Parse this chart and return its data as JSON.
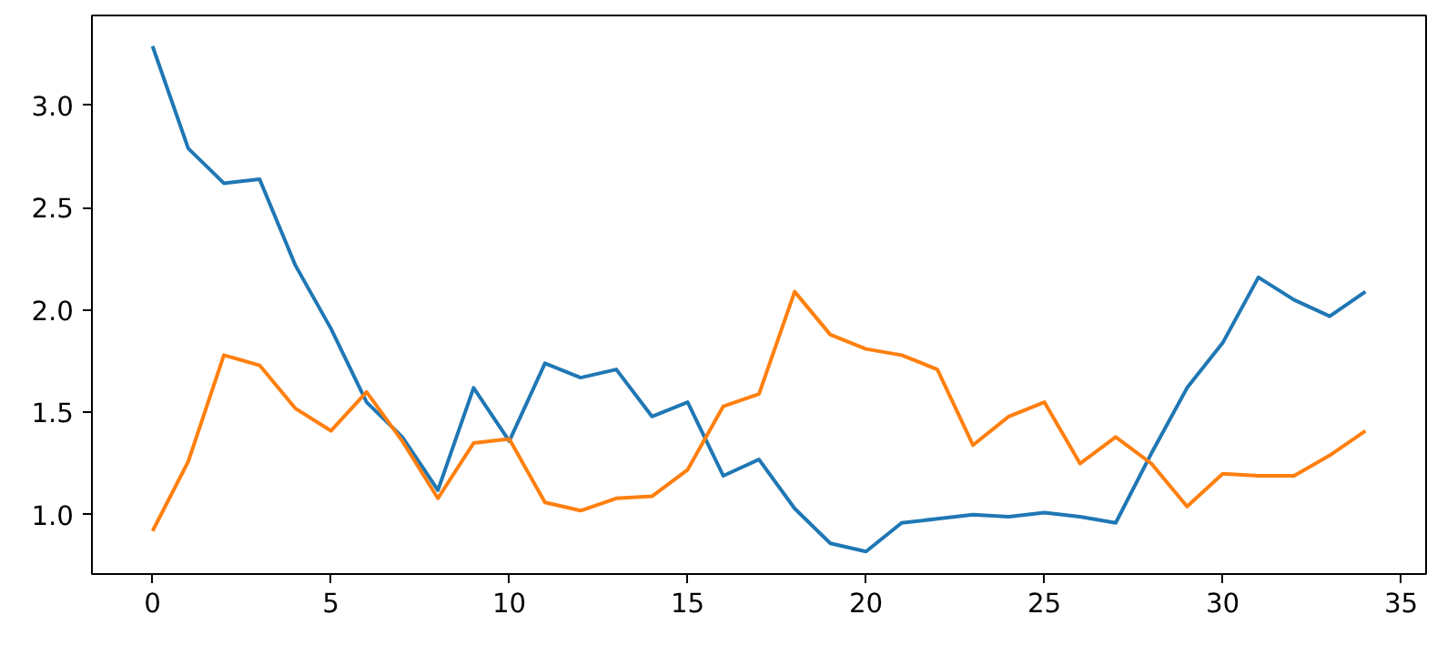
{
  "chart_data": {
    "type": "line",
    "x": [
      0,
      1,
      2,
      3,
      4,
      5,
      6,
      7,
      8,
      9,
      10,
      11,
      12,
      13,
      14,
      15,
      16,
      17,
      18,
      19,
      20,
      21,
      22,
      23,
      24,
      25,
      26,
      27,
      28,
      29,
      30,
      31,
      32,
      33,
      34
    ],
    "series": [
      {
        "color": "#1f77b4",
        "values": [
          3.29,
          2.79,
          2.62,
          2.64,
          2.22,
          1.91,
          1.55,
          1.38,
          1.12,
          1.62,
          1.36,
          1.74,
          1.67,
          1.71,
          1.48,
          1.55,
          1.19,
          1.27,
          1.03,
          0.86,
          0.82,
          0.96,
          0.98,
          1.0,
          0.99,
          1.01,
          0.99,
          0.96,
          1.3,
          1.62,
          1.84,
          2.16,
          2.05,
          1.97,
          2.09
        ]
      },
      {
        "color": "#ff7f0e",
        "values": [
          0.92,
          1.26,
          1.78,
          1.73,
          1.52,
          1.41,
          1.6,
          1.36,
          1.08,
          1.35,
          1.37,
          1.06,
          1.02,
          1.08,
          1.09,
          1.22,
          1.53,
          1.59,
          2.09,
          1.88,
          1.81,
          1.78,
          1.71,
          1.34,
          1.48,
          1.55,
          1.25,
          1.38,
          1.25,
          1.04,
          1.2,
          1.19,
          1.19,
          1.29,
          1.41
        ]
      }
    ],
    "xlim": [
      -1.7,
      35.7
    ],
    "ylim": [
      0.71,
      3.44
    ],
    "xticks": [
      0,
      5,
      10,
      15,
      20,
      25,
      30,
      35
    ],
    "yticks": [
      {
        "value": 1,
        "label": "1.0"
      },
      1.5,
      {
        "value": 2,
        "label": "2.0"
      },
      2.5,
      {
        "value": 3,
        "label": "3.0"
      }
    ]
  }
}
